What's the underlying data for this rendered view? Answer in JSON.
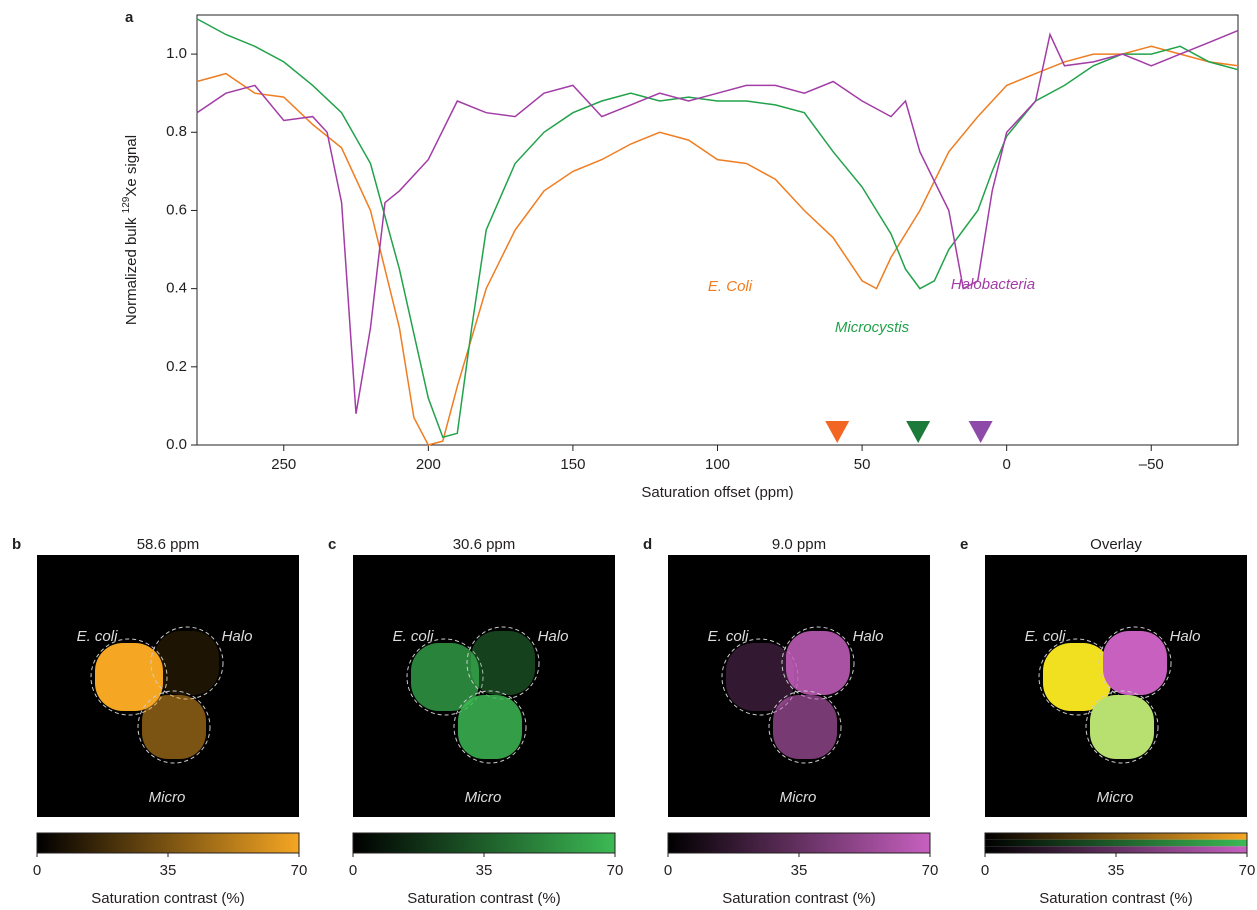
{
  "chart_data": {
    "type": "line",
    "panel_label": "a",
    "xlabel": "Saturation offset (ppm)",
    "ylabel": {
      "pre": "Normalized bulk ",
      "sup": "129",
      "post": "Xe signal"
    },
    "xlim": [
      280,
      -80
    ],
    "ylim": [
      0,
      1.1
    ],
    "xticks": [
      250,
      200,
      150,
      100,
      50,
      0,
      {
        "value": -50,
        "label": "–50"
      }
    ],
    "yticks": [
      {
        "value": 0,
        "label": "0.0"
      },
      0.2,
      0.4,
      0.6,
      0.8,
      {
        "value": 1,
        "label": "1.0"
      }
    ],
    "series": [
      {
        "name": "E. Coli",
        "color": "#ef7d22",
        "x": [
          280,
          270,
          260,
          250,
          240,
          230,
          220,
          210,
          205,
          200,
          195,
          190,
          180,
          170,
          160,
          150,
          140,
          130,
          120,
          110,
          100,
          90,
          80,
          70,
          60,
          50,
          45,
          40,
          30,
          20,
          10,
          0,
          -10,
          -20,
          -30,
          -40,
          -50,
          -60,
          -70,
          -80
        ],
        "values": [
          0.93,
          0.95,
          0.9,
          0.89,
          0.82,
          0.76,
          0.6,
          0.3,
          0.07,
          0.0,
          0.01,
          0.15,
          0.4,
          0.55,
          0.65,
          0.7,
          0.73,
          0.77,
          0.8,
          0.78,
          0.73,
          0.72,
          0.68,
          0.6,
          0.53,
          0.42,
          0.4,
          0.48,
          0.6,
          0.75,
          0.84,
          0.92,
          0.95,
          0.98,
          1.0,
          1.0,
          1.02,
          1.0,
          0.98,
          0.97
        ]
      },
      {
        "name": "Microcystis",
        "color": "#22a24a",
        "x": [
          280,
          270,
          260,
          250,
          240,
          230,
          220,
          210,
          200,
          195,
          190,
          185,
          180,
          170,
          160,
          150,
          140,
          130,
          120,
          110,
          100,
          90,
          80,
          70,
          60,
          50,
          40,
          35,
          30,
          25,
          20,
          10,
          5,
          0,
          -10,
          -20,
          -30,
          -40,
          -50,
          -60,
          -70,
          -80
        ],
        "values": [
          1.09,
          1.05,
          1.02,
          0.98,
          0.92,
          0.85,
          0.72,
          0.45,
          0.12,
          0.02,
          0.03,
          0.3,
          0.55,
          0.72,
          0.8,
          0.85,
          0.88,
          0.9,
          0.88,
          0.89,
          0.88,
          0.88,
          0.87,
          0.85,
          0.75,
          0.66,
          0.54,
          0.45,
          0.4,
          0.42,
          0.5,
          0.6,
          0.7,
          0.79,
          0.88,
          0.92,
          0.97,
          1.0,
          1.0,
          1.02,
          0.98,
          0.96
        ]
      },
      {
        "name": "Halobacteria",
        "color": "#a23ca6",
        "x": [
          280,
          270,
          260,
          250,
          240,
          235,
          230,
          225,
          220,
          215,
          210,
          200,
          190,
          180,
          170,
          160,
          150,
          140,
          130,
          120,
          110,
          100,
          90,
          80,
          70,
          60,
          50,
          40,
          35,
          30,
          20,
          15,
          10,
          5,
          0,
          -10,
          -15,
          -20,
          -30,
          -40,
          -50,
          -60,
          -70,
          -80
        ],
        "values": [
          0.85,
          0.9,
          0.92,
          0.83,
          0.84,
          0.8,
          0.62,
          0.08,
          0.3,
          0.62,
          0.65,
          0.73,
          0.88,
          0.85,
          0.84,
          0.9,
          0.92,
          0.84,
          0.87,
          0.9,
          0.88,
          0.9,
          0.92,
          0.92,
          0.9,
          0.93,
          0.88,
          0.84,
          0.88,
          0.75,
          0.6,
          0.4,
          0.42,
          0.65,
          0.8,
          0.88,
          1.05,
          0.97,
          0.98,
          1.0,
          0.97,
          1.0,
          1.03,
          1.06
        ]
      }
    ],
    "markers": [
      {
        "x": 58.6,
        "color": "#f26522"
      },
      {
        "x": 30.6,
        "color": "#1c7a3a"
      },
      {
        "x": 9.0,
        "color": "#8e4aa8"
      }
    ]
  },
  "panels": [
    {
      "label": "b",
      "title": "58.6 ppm",
      "color": "#f5a623",
      "regions": [
        "E. coli",
        "Halo",
        "Micro"
      ],
      "colorbar": {
        "clim": [
          0,
          70
        ],
        "ticks": [
          0,
          35,
          70
        ],
        "label": "Saturation contrast (%)"
      }
    },
    {
      "label": "c",
      "title": "30.6 ppm",
      "color": "#3cba54",
      "regions": [
        "E. coli",
        "Halo",
        "Micro"
      ],
      "colorbar": {
        "clim": [
          0,
          70
        ],
        "ticks": [
          0,
          35,
          70
        ],
        "label": "Saturation contrast (%)"
      }
    },
    {
      "label": "d",
      "title": "9.0 ppm",
      "color": "#c760c0",
      "regions": [
        "E. coli",
        "Halo",
        "Micro"
      ],
      "colorbar": {
        "clim": [
          0,
          70
        ],
        "ticks": [
          0,
          35,
          70
        ],
        "label": "Saturation contrast (%)"
      }
    },
    {
      "label": "e",
      "title": "Overlay",
      "regions": [
        "E. coli",
        "Halo",
        "Micro"
      ],
      "colorbar": {
        "clim": [
          0,
          70
        ],
        "ticks": [
          0,
          35,
          70
        ],
        "label": "Saturation contrast (%)"
      }
    }
  ]
}
